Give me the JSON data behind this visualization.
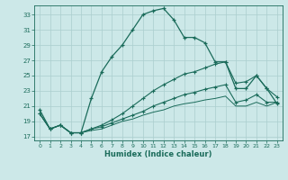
{
  "xlabel": "Humidex (Indice chaleur)",
  "bg_color": "#cce8e8",
  "line_color": "#1a6b5a",
  "grid_color": "#aacece",
  "xlim": [
    -0.5,
    23.5
  ],
  "ylim": [
    16.5,
    34.2
  ],
  "yticks": [
    17,
    19,
    21,
    23,
    25,
    27,
    29,
    31,
    33
  ],
  "xticks": [
    0,
    1,
    2,
    3,
    4,
    5,
    6,
    7,
    8,
    9,
    10,
    11,
    12,
    13,
    14,
    15,
    16,
    17,
    18,
    19,
    20,
    21,
    22,
    23
  ],
  "series1_x": [
    0,
    1,
    2,
    3,
    4,
    5,
    6,
    7,
    8,
    9,
    10,
    11,
    12,
    13,
    14,
    15,
    16,
    17,
    18,
    19,
    20,
    21,
    22,
    23
  ],
  "series1_y": [
    20.5,
    18.0,
    18.5,
    17.5,
    17.5,
    22.0,
    25.5,
    27.5,
    29.0,
    31.0,
    33.0,
    33.5,
    33.8,
    32.3,
    30.0,
    30.0,
    29.3,
    26.8,
    26.8,
    23.3,
    23.3,
    25.0,
    23.3,
    21.3
  ],
  "series2_x": [
    0,
    1,
    2,
    3,
    4,
    5,
    6,
    7,
    8,
    9,
    10,
    11,
    12,
    13,
    14,
    15,
    16,
    17,
    18,
    19,
    20,
    21,
    22,
    23
  ],
  "series2_y": [
    20.0,
    18.0,
    18.5,
    17.5,
    17.5,
    18.0,
    18.5,
    19.2,
    20.0,
    21.0,
    22.0,
    23.0,
    23.8,
    24.5,
    25.2,
    25.5,
    26.0,
    26.5,
    26.8,
    24.0,
    24.2,
    25.0,
    23.3,
    22.2
  ],
  "series3_x": [
    0,
    1,
    2,
    3,
    4,
    5,
    6,
    7,
    8,
    9,
    10,
    11,
    12,
    13,
    14,
    15,
    16,
    17,
    18,
    19,
    20,
    21,
    22,
    23
  ],
  "series3_y": [
    20.0,
    18.0,
    18.5,
    17.5,
    17.5,
    18.0,
    18.3,
    18.8,
    19.3,
    19.8,
    20.3,
    21.0,
    21.5,
    22.0,
    22.5,
    22.8,
    23.2,
    23.5,
    23.8,
    21.5,
    21.8,
    22.5,
    21.5,
    21.5
  ],
  "series4_x": [
    0,
    1,
    2,
    3,
    4,
    5,
    6,
    7,
    8,
    9,
    10,
    11,
    12,
    13,
    14,
    15,
    16,
    17,
    18,
    19,
    20,
    21,
    22,
    23
  ],
  "series4_y": [
    20.0,
    18.0,
    18.5,
    17.5,
    17.5,
    17.8,
    18.0,
    18.5,
    19.0,
    19.3,
    19.8,
    20.2,
    20.5,
    21.0,
    21.3,
    21.5,
    21.8,
    22.0,
    22.3,
    21.0,
    21.0,
    21.5,
    21.0,
    21.5
  ]
}
